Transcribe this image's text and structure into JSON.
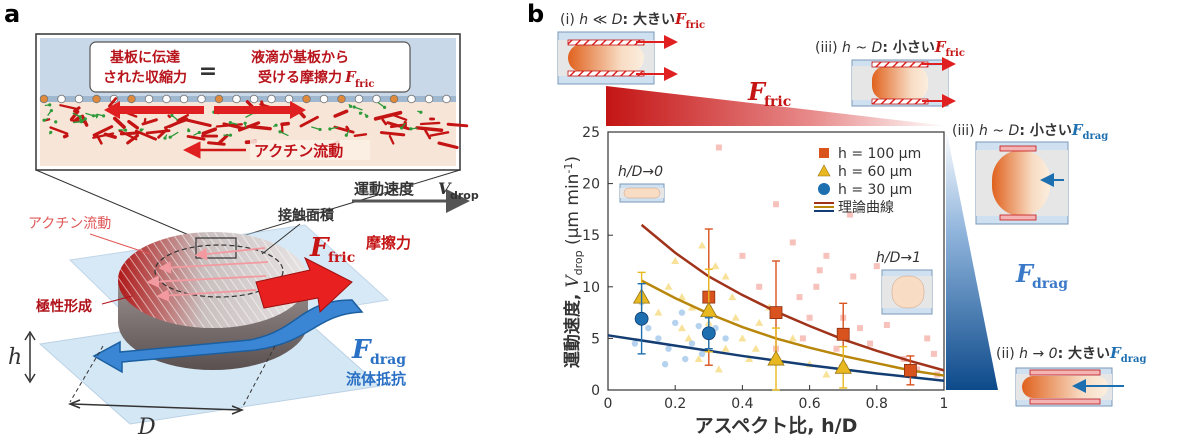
{
  "panel_a": {
    "label": "a",
    "equation": {
      "left_line1": "基板に伝達",
      "left_line2": "された収縮力",
      "equals": "=",
      "right_line1": "液滴が基板から",
      "right_line2": "受ける摩擦力",
      "right_symbol": "F",
      "right_sub": "fric"
    },
    "actin_flow_inset": "アクチン流動",
    "velocity_label": "運動速度 ",
    "velocity_symbol": "V",
    "velocity_sub": "drop",
    "contact_area": "接触面積",
    "actin_flow": "アクチン流動",
    "polarity": "極性形成",
    "f_fric_symbol": "F",
    "f_fric_sub": "fric",
    "friction": "摩擦力",
    "f_drag_symbol": "F",
    "f_drag_sub": "drag",
    "fluid_resistance": "流体抵抗",
    "h_label": "h",
    "d_label": "D"
  },
  "panel_b": {
    "label": "b",
    "case_i": {
      "prefix": "(i) ",
      "cond": "h ≪ D",
      "text": ": 大きい",
      "symbol": "F",
      "sub": "fric"
    },
    "case_iii_fric": {
      "prefix": "(iii) ",
      "cond": "h ~ D",
      "text": ": 小さい",
      "symbol": "F",
      "sub": "fric"
    },
    "case_iii_drag": {
      "prefix": "(iii) ",
      "cond": "h ~ D",
      "text": ": 小さい",
      "symbol": "F",
      "sub": "drag"
    },
    "case_ii": {
      "prefix": "(ii) ",
      "cond": "h → 0",
      "text": ": 大きい",
      "symbol": "F",
      "sub": "drag"
    },
    "f_fric_symbol": "F",
    "f_fric_sub": "fric",
    "f_drag_symbol": "F",
    "f_drag_sub": "drag",
    "inset_low": "h/D→0",
    "inset_high": "h/D→1"
  },
  "colors": {
    "red": "#cc1f1f",
    "blue": "#1f5fa8",
    "orange": "#d9531e",
    "gold": "#e8b820",
    "dark_blue": "#1e6fb0"
  },
  "chart_data": {
    "type": "scatter",
    "xlabel": "アスペクト比, h/D",
    "ylabel_main": "運動速度, ",
    "ylabel_symbol": "V",
    "ylabel_sub": "drop",
    "ylabel_unit": " (µm min",
    "ylabel_exp": "-1",
    "ylabel_close": ")",
    "xlim": [
      0,
      1
    ],
    "ylim": [
      0,
      25
    ],
    "xticks": [
      "0",
      "0.2",
      "0.4",
      "0.6",
      "0.8",
      "1"
    ],
    "yticks": [
      "0",
      "5",
      "10",
      "15",
      "20",
      "25"
    ],
    "legend": [
      {
        "label": "h = 100 µm",
        "marker": "square",
        "color": "#d9531e"
      },
      {
        "label": "h = 60 µm",
        "marker": "triangle",
        "color": "#e8b820"
      },
      {
        "label": "h = 30 µm",
        "marker": "circle",
        "color": "#1e6fb0"
      },
      {
        "label": "理論曲線",
        "marker": "lines",
        "color": "#8b2c12"
      }
    ],
    "series": [
      {
        "name": "h = 100 µm",
        "marker": "square",
        "color": "#d9531e",
        "x": [
          0.3,
          0.5,
          0.7,
          0.9
        ],
        "y": [
          9.0,
          7.5,
          5.4,
          1.9
        ],
        "err": [
          6.6,
          5.0,
          3.0,
          1.4
        ]
      },
      {
        "name": "h = 60 µm",
        "marker": "triangle",
        "color": "#e8b820",
        "x": [
          0.1,
          0.3,
          0.5,
          0.7
        ],
        "y": [
          9.0,
          7.7,
          3.0,
          2.2
        ],
        "err": [
          2.4,
          4.0,
          3.0,
          2.0
        ]
      },
      {
        "name": "h = 30 µm",
        "marker": "circle",
        "color": "#1e6fb0",
        "x": [
          0.1,
          0.3
        ],
        "y": [
          6.9,
          5.5
        ],
        "err": [
          3.4,
          1.5
        ]
      }
    ],
    "curves": [
      {
        "name": "100",
        "color": "#a0331a",
        "x": [
          0.1,
          0.2,
          0.3,
          0.4,
          0.5,
          0.6,
          0.7,
          0.8,
          0.9,
          1.0
        ],
        "y": [
          16.0,
          13.3,
          11.0,
          9.2,
          7.6,
          6.2,
          4.9,
          3.8,
          2.8,
          1.9
        ]
      },
      {
        "name": "60",
        "color": "#b8860b",
        "x": [
          0.1,
          0.2,
          0.3,
          0.4,
          0.5,
          0.6,
          0.7,
          0.8,
          0.9,
          1.0
        ],
        "y": [
          10.6,
          8.9,
          7.4,
          6.1,
          5.0,
          4.1,
          3.3,
          2.6,
          1.9,
          1.4
        ]
      },
      {
        "name": "30",
        "color": "#133d73",
        "x": [
          0.0,
          0.2,
          0.4,
          0.6,
          0.8,
          1.0
        ],
        "y": [
          5.3,
          4.3,
          3.3,
          2.4,
          1.6,
          0.9
        ]
      }
    ],
    "background_points": {
      "red": [
        [
          0.5,
          18
        ],
        [
          0.33,
          23.5
        ],
        [
          0.72,
          17
        ],
        [
          0.85,
          9
        ],
        [
          0.8,
          12
        ],
        [
          0.62,
          10
        ],
        [
          0.65,
          13
        ],
        [
          0.55,
          14.3
        ],
        [
          0.7,
          7
        ],
        [
          0.75,
          6
        ],
        [
          0.9,
          8
        ],
        [
          0.95,
          5
        ],
        [
          0.6,
          7
        ],
        [
          0.68,
          4
        ],
        [
          0.78,
          4.5
        ],
        [
          0.88,
          3
        ],
        [
          0.58,
          5
        ],
        [
          0.4,
          13
        ],
        [
          0.45,
          10
        ],
        [
          0.92,
          2
        ],
        [
          0.98,
          1.5
        ],
        [
          0.5,
          4
        ],
        [
          0.83,
          6.3
        ],
        [
          0.73,
          11
        ],
        [
          0.63,
          11.6
        ],
        [
          0.57,
          9
        ],
        [
          0.97,
          3.5
        ]
      ],
      "gold": [
        [
          0.22,
          6
        ],
        [
          0.25,
          8
        ],
        [
          0.28,
          14
        ],
        [
          0.32,
          12
        ],
        [
          0.35,
          11
        ],
        [
          0.2,
          12.5
        ],
        [
          0.18,
          10
        ],
        [
          0.3,
          9.5
        ],
        [
          0.38,
          7
        ],
        [
          0.4,
          5
        ],
        [
          0.42,
          3
        ],
        [
          0.45,
          6.5
        ],
        [
          0.35,
          4
        ],
        [
          0.48,
          8
        ],
        [
          0.55,
          5
        ],
        [
          0.6,
          2.5
        ],
        [
          0.65,
          1.5
        ],
        [
          0.15,
          7.5
        ],
        [
          0.27,
          3
        ],
        [
          0.33,
          2
        ],
        [
          0.24,
          5
        ],
        [
          0.37,
          9
        ],
        [
          0.3,
          6.5
        ],
        [
          0.22,
          9
        ],
        [
          0.44,
          4
        ]
      ],
      "blue": [
        [
          0.1,
          8.5
        ],
        [
          0.12,
          6
        ],
        [
          0.15,
          5
        ],
        [
          0.18,
          4
        ],
        [
          0.2,
          6.5
        ],
        [
          0.22,
          7.5
        ],
        [
          0.25,
          4.5
        ],
        [
          0.28,
          3.5
        ],
        [
          0.3,
          8
        ],
        [
          0.32,
          6
        ],
        [
          0.35,
          5
        ],
        [
          0.08,
          4.5
        ],
        [
          0.17,
          2.5
        ],
        [
          0.27,
          6.2
        ],
        [
          0.23,
          3
        ]
      ]
    }
  }
}
